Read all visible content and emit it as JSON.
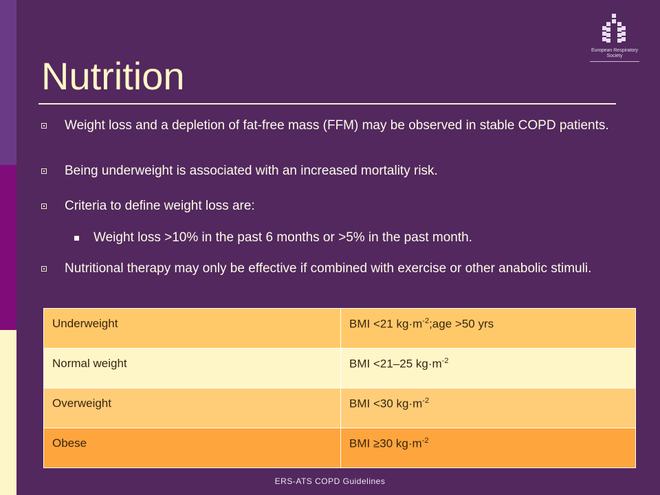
{
  "logo": {
    "line1": "European Respiratory",
    "line2": "Society"
  },
  "title": "Nutrition",
  "bullets": [
    "Weight loss and a depletion of fat-free mass (FFM) may be observed in stable COPD patients.",
    "Being underweight is associated with an increased mortality risk.",
    "Criteria to define weight loss are:",
    "Weight loss >10% in the past 6 months or >5% in the past month.",
    "Nutritional therapy may only be effective if combined with exercise or other anabolic stimuli."
  ],
  "table": {
    "rows": [
      {
        "category": "Underweight",
        "bmi_prefix": "BMI <21 kg·m",
        "bmi_exp": "-2",
        "bmi_suffix": ";age >50 yrs"
      },
      {
        "category": "Normal weight",
        "bmi_prefix": "BMI <21–25 kg·m",
        "bmi_exp": "-2",
        "bmi_suffix": ""
      },
      {
        "category": "Overweight",
        "bmi_prefix": "BMI <30 kg·m",
        "bmi_exp": "-2",
        "bmi_suffix": ""
      },
      {
        "category": "Obese",
        "bmi_prefix": "BMI ≥30 kg·m",
        "bmi_exp": "-2",
        "bmi_suffix": ""
      }
    ],
    "colors": [
      "#ffc96a",
      "#fff6c8",
      "#ffcd78",
      "#ffa53d"
    ]
  },
  "footer": "ERS-ATS COPD Guidelines",
  "colors": {
    "background": "#52285e",
    "title": "#fff7c6",
    "text": "#fdfbe8"
  }
}
